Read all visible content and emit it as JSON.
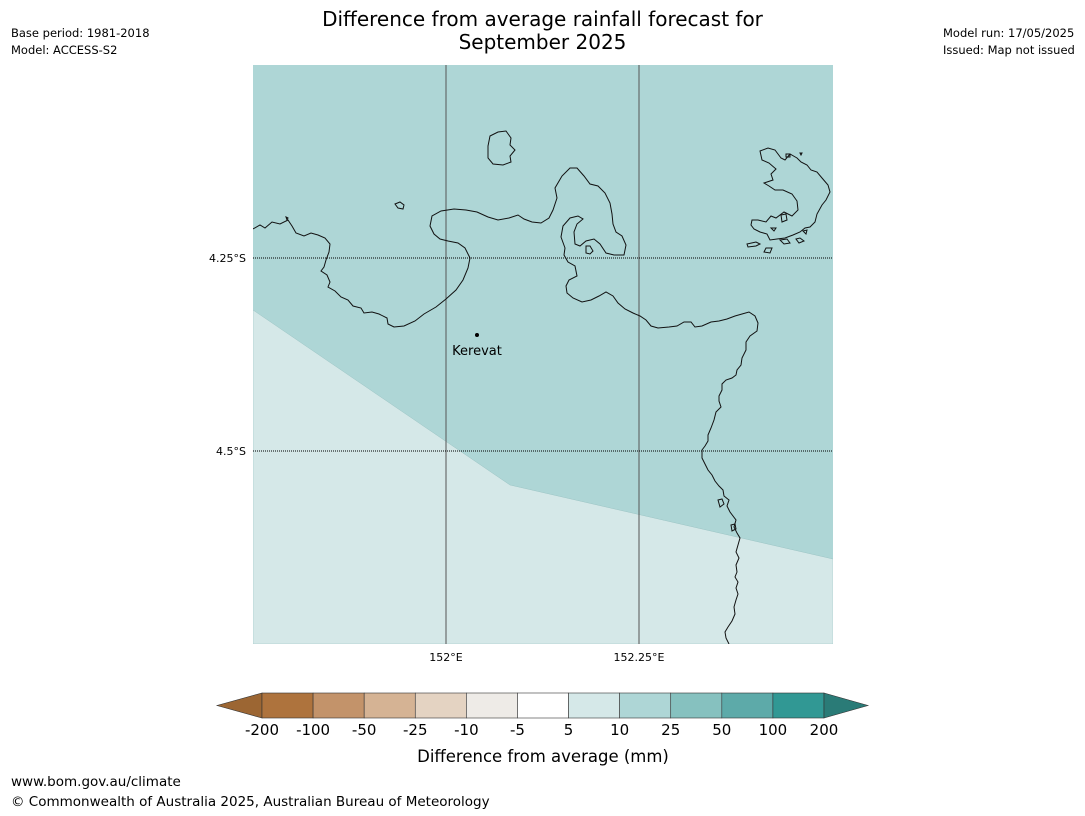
{
  "title_line1": "Difference from average rainfall forecast for",
  "title_line2": "September 2025",
  "meta_left": {
    "base_period": "Base period: 1981-2018",
    "model": "Model: ACCESS-S2"
  },
  "meta_right": {
    "model_run": "Model run: 17/05/2025",
    "issued": "Issued: Map not issued"
  },
  "map": {
    "place_label": "Kerevat",
    "lat_labels": [
      "4.25°S",
      "4.5°S"
    ],
    "lon_labels": [
      "152°E",
      "152.25°E"
    ],
    "regions": [
      {
        "name": "upper-area",
        "category": "10 to 25",
        "color": "#aed6d6"
      },
      {
        "name": "lower-area",
        "category": "5 to 10",
        "color": "#d5e8e8"
      }
    ]
  },
  "colorbar": {
    "label": "Difference from average (mm)",
    "ticks": [
      "-200",
      "-100",
      "-50",
      "-25",
      "-10",
      "-5",
      "5",
      "10",
      "25",
      "50",
      "100",
      "200"
    ],
    "colors": [
      "#9c6633",
      "#ae733d",
      "#c3936a",
      "#d5b394",
      "#e4d3c2",
      "#eeebe7",
      "#ffffff",
      "#d5e8e8",
      "#aed6d6",
      "#86c1bf",
      "#5daaa9",
      "#319894",
      "#2a7b77"
    ]
  },
  "footer": {
    "url": "www.bom.gov.au/climate",
    "copyright": "© Commonwealth of Australia 2025, Australian Bureau of Meteorology"
  }
}
